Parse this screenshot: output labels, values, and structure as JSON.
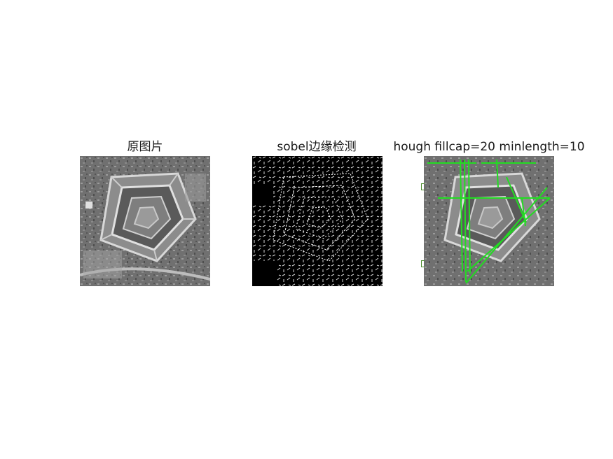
{
  "figure": {
    "panels": [
      {
        "title": "原图片",
        "kind": "grayscale-aerial-photo",
        "subject": "pentagon-building"
      },
      {
        "title": "sobel边缘检测",
        "kind": "binary-edge-map",
        "background": "#000000",
        "edges": "#ffffff"
      },
      {
        "title": "hough fillcap=20 minlength=10",
        "kind": "photo-with-hough-lines",
        "line_color": "#22dd22"
      }
    ]
  }
}
